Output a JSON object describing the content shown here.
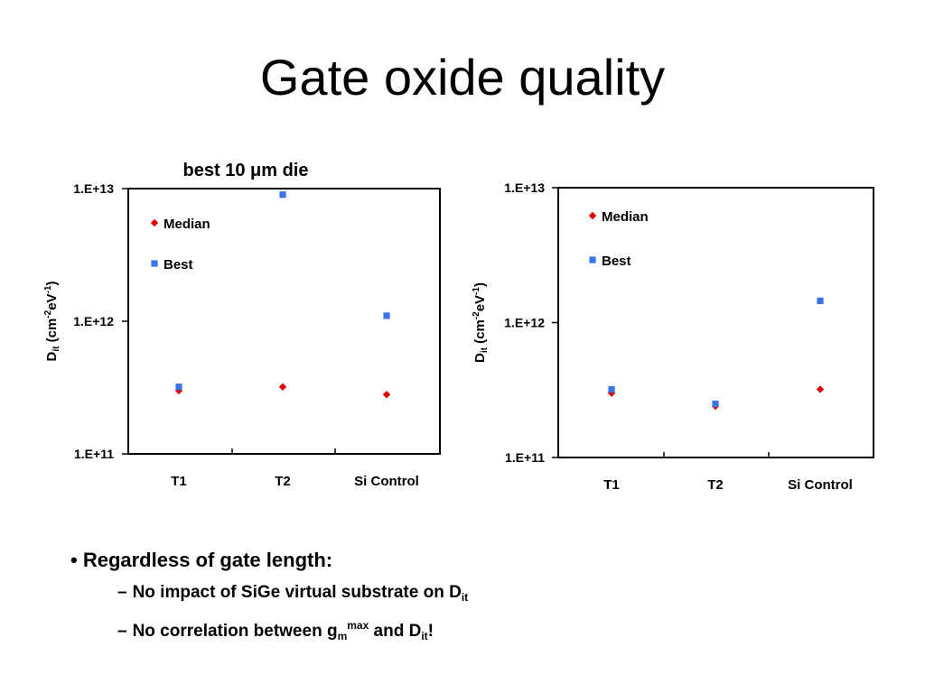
{
  "slide": {
    "title": "Gate oxide quality"
  },
  "colors": {
    "median": "#e00000",
    "best": "#3b73e8",
    "axis": "#000000",
    "text": "#000000"
  },
  "chart_data": [
    {
      "type": "scatter",
      "title": "best 10 μm die",
      "ylabel": "D_it (cm^-2 eV^-1)",
      "yscale": "log",
      "ylim": [
        100000000000.0,
        10000000000000.0
      ],
      "yticks": [
        "1.E+11",
        "1.E+12",
        "1.E+13"
      ],
      "categories": [
        "T1",
        "T2",
        "Si Control"
      ],
      "legend_position": "top-left",
      "series": [
        {
          "name": "Median",
          "marker": "diamond",
          "values": [
            300000000000.0,
            320000000000.0,
            280000000000.0
          ]
        },
        {
          "name": "Best",
          "marker": "square",
          "values": [
            320000000000.0,
            9000000000000.0,
            1100000000000.0
          ]
        }
      ]
    },
    {
      "type": "scatter",
      "title": "",
      "ylabel": "D_it (cm^-2 eV^-1)",
      "yscale": "log",
      "ylim": [
        100000000000.0,
        10000000000000.0
      ],
      "yticks": [
        "1.E+11",
        "1.E+12",
        "1.E+13"
      ],
      "categories": [
        "T1",
        "T2",
        "Si Control"
      ],
      "legend_position": "top-left",
      "series": [
        {
          "name": "Median",
          "marker": "diamond",
          "values": [
            300000000000.0,
            240000000000.0,
            320000000000.0
          ]
        },
        {
          "name": "Best",
          "marker": "square",
          "values": [
            320000000000.0,
            250000000000.0,
            1450000000000.0
          ]
        }
      ]
    }
  ],
  "axis_label": {
    "main": "D",
    "sub": "it",
    "pre": " (cm",
    "exp1": "-2",
    "mid": "eV",
    "exp2": "-1",
    "post": ")"
  },
  "bullets": {
    "main": {
      "marker": "•",
      "text": "Regardless of gate length:"
    },
    "sub1": {
      "dash": "–",
      "text": "No impact of SiGe virtual substrate on D",
      "sub": "it"
    },
    "sub2": {
      "dash": "–",
      "text_a": "No correlation between g",
      "sub_m": "m",
      "sup_max": "max",
      "text_b": " and D",
      "sub_it": "it",
      "text_c": "!"
    }
  }
}
